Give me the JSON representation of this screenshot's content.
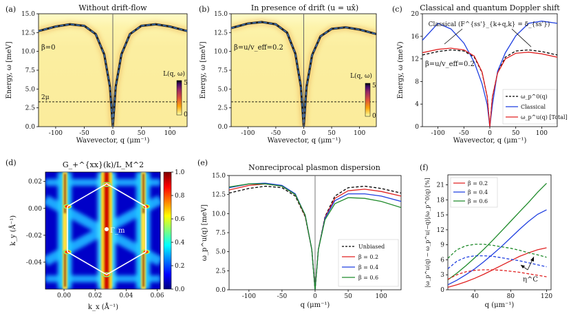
{
  "figure": {
    "panel_labels": [
      "(a)",
      "(b)",
      "(c)",
      "(d)",
      "(e)",
      "(f)"
    ]
  },
  "colors": {
    "dashed_curve": "#3a6fb0",
    "vline": "#666666",
    "black": "#000000",
    "red": "#e02020",
    "blue": "#1f3fe0",
    "green": "#1e8a2a",
    "hexagon": "#ffffff"
  },
  "chart_data": [
    {
      "id": "a",
      "type": "heatmap",
      "title": "Without drift-flow",
      "xlabel": "Wavevector, q (μm⁻¹)",
      "ylabel": "Energy, ω [meV]",
      "xlim": [
        -130,
        130
      ],
      "ylim": [
        0,
        15
      ],
      "xticks": [
        -100,
        -50,
        0,
        50,
        100
      ],
      "yticks": [
        0.0,
        2.5,
        5.0,
        7.5,
        10.0,
        12.5,
        15.0
      ],
      "annotation": "β=0",
      "threshold_label": "2μ",
      "threshold_energy": 3.3,
      "colorbar_label": "L(q, ω)",
      "colorbar_ticks": [
        0,
        5
      ],
      "dispersion": {
        "q": [
          -130,
          -100,
          -75,
          -50,
          -30,
          -15,
          -5,
          0,
          5,
          15,
          30,
          50,
          75,
          100,
          130
        ],
        "energy": [
          12.7,
          13.3,
          13.6,
          13.4,
          12.3,
          9.6,
          5.3,
          0.0,
          5.3,
          9.6,
          12.3,
          13.4,
          13.6,
          13.3,
          12.7
        ]
      }
    },
    {
      "id": "b",
      "type": "heatmap",
      "title": "In presence of drift (u = ux̂)",
      "xlabel": "Wavevector, q (μm⁻¹)",
      "ylabel": "Energy, ω [meV]",
      "xlim": [
        -130,
        130
      ],
      "ylim": [
        0,
        15
      ],
      "xticks": [
        -100,
        -50,
        0,
        50,
        100
      ],
      "yticks": [
        0.0,
        2.5,
        5.0,
        7.5,
        10.0,
        12.5,
        15.0
      ],
      "annotation": "β=u/v_eff=0.2",
      "threshold_energy": 3.3,
      "colorbar_label": "L(q, ω)",
      "colorbar_ticks": [
        0,
        5
      ],
      "dispersion": {
        "q": [
          -130,
          -100,
          -75,
          -50,
          -30,
          -15,
          -5,
          0,
          5,
          15,
          30,
          50,
          75,
          100,
          130
        ],
        "energy": [
          13.1,
          13.7,
          13.9,
          13.6,
          12.5,
          9.7,
          5.3,
          0.0,
          5.3,
          9.5,
          12.0,
          13.0,
          13.2,
          12.9,
          12.3
        ]
      }
    },
    {
      "id": "c",
      "type": "line",
      "title": "Classical and quantum Doppler shift",
      "xlabel": "Wavevector, q (μm⁻¹)",
      "ylabel": "Energy, ω (meV)",
      "xlim": [
        -130,
        130
      ],
      "ylim": [
        0,
        20
      ],
      "xticks": [
        -100,
        -50,
        0,
        50,
        100
      ],
      "yticks": [
        0,
        4,
        8,
        12,
        16,
        20
      ],
      "annotation": "β=u/v_eff=0.2",
      "arrow_label": "Classical (F^{ss'}_{k+q,k} = δ_{ss'})",
      "legend": [
        "ω_p^0(q)",
        "Classical",
        "ω_p^u(q) [Total]"
      ],
      "series": [
        {
          "name": "ω_p^0(q)",
          "style": "dashed",
          "color": "black",
          "x": [
            -130,
            -100,
            -75,
            -50,
            -30,
            -15,
            -5,
            0,
            5,
            15,
            30,
            50,
            75,
            100,
            130
          ],
          "y": [
            12.7,
            13.3,
            13.6,
            13.4,
            12.3,
            9.6,
            5.3,
            0.0,
            5.3,
            9.6,
            12.3,
            13.4,
            13.6,
            13.3,
            12.7
          ]
        },
        {
          "name": "Classical",
          "style": "solid",
          "color": "blue",
          "x": [
            -130,
            -100,
            -75,
            -50,
            -30,
            -15,
            -5,
            0,
            5,
            15,
            30,
            50,
            75,
            100,
            130
          ],
          "y": [
            15.3,
            18.3,
            17.3,
            14.8,
            11.4,
            7.6,
            3.9,
            0.0,
            3.9,
            9.8,
            13.1,
            16.1,
            18.3,
            18.7,
            18.3
          ]
        },
        {
          "name": "ω_p^u(q) [Total]",
          "style": "solid",
          "color": "red",
          "x": [
            -130,
            -100,
            -75,
            -50,
            -30,
            -15,
            -5,
            0,
            5,
            15,
            30,
            50,
            75,
            100,
            130
          ],
          "y": [
            13.1,
            13.7,
            13.9,
            13.6,
            12.5,
            9.7,
            5.3,
            0.0,
            5.3,
            9.5,
            12.0,
            13.0,
            13.2,
            12.9,
            12.3
          ]
        }
      ]
    },
    {
      "id": "d",
      "type": "heatmap",
      "title": "G_+^{xx}(k)/L_M^2",
      "xlabel": "k_x (Å⁻¹)",
      "ylabel": "k_y (Å⁻¹)",
      "xlim": [
        -0.012,
        0.062
      ],
      "ylim": [
        -0.06,
        0.027
      ],
      "xticks": [
        0.0,
        0.02,
        0.04,
        0.06
      ],
      "yticks": [
        0.02,
        0.0,
        -0.02,
        -0.04
      ],
      "point_label": "Γ_m",
      "colorbar_ticks": [
        0.0,
        0.2,
        0.4,
        0.6,
        0.8,
        1.0
      ]
    },
    {
      "id": "e",
      "type": "line",
      "title": "Nonreciprocal plasmon dispersion",
      "xlabel": "q (μm⁻¹)",
      "ylabel": "ω_p^u(q) [meV]",
      "xlim": [
        -130,
        130
      ],
      "ylim": [
        0,
        15
      ],
      "xticks": [
        -100,
        -50,
        0,
        50,
        100
      ],
      "yticks": [
        0.0,
        2.5,
        5.0,
        7.5,
        10.0,
        12.5,
        15.0
      ],
      "series": [
        {
          "name": "Unbiased",
          "style": "dashed",
          "color": "black",
          "x": [
            -130,
            -100,
            -75,
            -50,
            -30,
            -15,
            -5,
            0,
            5,
            15,
            30,
            50,
            75,
            100,
            130
          ],
          "y": [
            12.7,
            13.3,
            13.6,
            13.4,
            12.3,
            9.6,
            5.3,
            0.0,
            5.3,
            9.6,
            12.3,
            13.4,
            13.6,
            13.3,
            12.7
          ]
        },
        {
          "name": "β = 0.2",
          "style": "solid",
          "color": "red",
          "x": [
            -130,
            -100,
            -75,
            -50,
            -30,
            -15,
            -5,
            0,
            5,
            15,
            30,
            50,
            75,
            100,
            130
          ],
          "y": [
            13.1,
            13.7,
            13.9,
            13.6,
            12.5,
            9.7,
            5.3,
            0.0,
            5.3,
            9.5,
            12.0,
            13.0,
            13.2,
            12.9,
            12.3
          ]
        },
        {
          "name": "β = 0.4",
          "style": "solid",
          "color": "blue",
          "x": [
            -130,
            -100,
            -75,
            -50,
            -30,
            -15,
            -5,
            0,
            5,
            15,
            30,
            50,
            75,
            100,
            130
          ],
          "y": [
            13.4,
            13.9,
            14.0,
            13.7,
            12.6,
            9.8,
            5.3,
            0.0,
            5.3,
            9.4,
            11.7,
            12.6,
            12.6,
            12.3,
            11.6
          ]
        },
        {
          "name": "β = 0.6",
          "style": "solid",
          "color": "green",
          "x": [
            -130,
            -100,
            -75,
            -50,
            -30,
            -15,
            -5,
            0,
            5,
            15,
            30,
            50,
            75,
            100,
            130
          ],
          "y": [
            13.5,
            13.9,
            13.9,
            13.6,
            12.5,
            9.8,
            5.3,
            0.0,
            5.3,
            9.2,
            11.3,
            12.1,
            12.0,
            11.6,
            10.8
          ]
        }
      ]
    },
    {
      "id": "f",
      "type": "line",
      "xlabel": "q (μm⁻¹)",
      "ylabel": "|ω_p^u(q) − ω_p^u(−q)|/ω_p^0(q) [%]",
      "xlim": [
        10,
        125
      ],
      "ylim": [
        0,
        23
      ],
      "xticks": [
        40,
        80,
        120
      ],
      "yticks": [
        0,
        3,
        6,
        9,
        12,
        15,
        18,
        21
      ],
      "arrow_label": "η^C",
      "series": [
        {
          "name": "β = 0.2",
          "style": "solid",
          "color": "red",
          "x": [
            10,
            20,
            30,
            40,
            50,
            60,
            70,
            80,
            90,
            100,
            110,
            120
          ],
          "y": [
            0.5,
            1.0,
            1.6,
            2.3,
            3.1,
            4.0,
            4.9,
            5.8,
            6.7,
            7.4,
            8.0,
            8.4
          ]
        },
        {
          "name": "β = 0.4",
          "style": "solid",
          "color": "blue",
          "x": [
            10,
            20,
            30,
            40,
            50,
            60,
            70,
            80,
            90,
            100,
            110,
            120
          ],
          "y": [
            1.0,
            1.9,
            3.0,
            4.2,
            5.6,
            7.1,
            8.7,
            10.4,
            12.1,
            13.7,
            15.1,
            16.0
          ]
        },
        {
          "name": "β = 0.6",
          "style": "solid",
          "color": "green",
          "x": [
            10,
            20,
            30,
            40,
            50,
            60,
            70,
            80,
            90,
            100,
            110,
            120
          ],
          "y": [
            2.0,
            3.3,
            4.8,
            6.4,
            8.1,
            9.9,
            11.8,
            13.7,
            15.6,
            17.5,
            19.5,
            21.3
          ]
        },
        {
          "name": "η^C β = 0.2",
          "style": "dashed",
          "color": "red",
          "x": [
            10,
            20,
            30,
            40,
            50,
            60,
            70,
            80,
            90,
            100,
            110,
            120
          ],
          "y": [
            2.1,
            3.0,
            3.6,
            3.9,
            4.0,
            4.0,
            3.9,
            3.7,
            3.5,
            3.2,
            2.9,
            2.6
          ]
        },
        {
          "name": "η^C β = 0.4",
          "style": "dashed",
          "color": "blue",
          "x": [
            10,
            20,
            30,
            40,
            50,
            60,
            70,
            80,
            90,
            100,
            110,
            120
          ],
          "y": [
            4.2,
            5.7,
            6.5,
            6.8,
            6.8,
            6.7,
            6.4,
            6.1,
            5.8,
            5.4,
            5.0,
            4.6
          ]
        },
        {
          "name": "η^C β = 0.6",
          "style": "dashed",
          "color": "green",
          "x": [
            10,
            20,
            30,
            40,
            50,
            60,
            70,
            80,
            90,
            100,
            110,
            120
          ],
          "y": [
            6.3,
            8.0,
            8.8,
            9.1,
            9.1,
            8.9,
            8.6,
            8.3,
            7.9,
            7.4,
            7.0,
            6.5
          ]
        }
      ]
    }
  ]
}
